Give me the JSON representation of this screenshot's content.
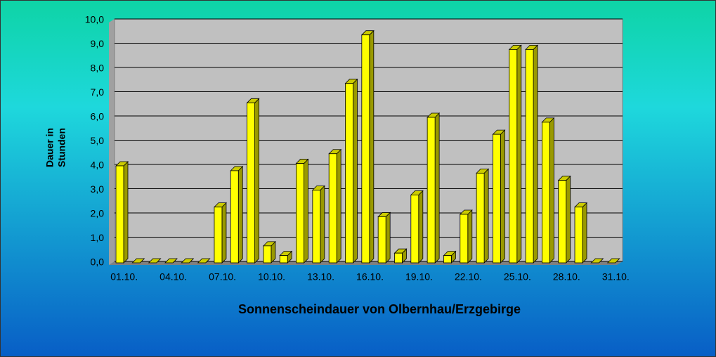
{
  "chart_data": {
    "type": "bar3d",
    "title": "Sonnenscheindauer von Olbernhau/Erzgebirge",
    "y_label": [
      "Dauer in",
      "Stunden"
    ],
    "categories": [
      "01.10.",
      null,
      null,
      "04.10.",
      null,
      null,
      "07.10.",
      null,
      null,
      "10.10.",
      null,
      null,
      "13.10.",
      null,
      null,
      "16.10.",
      null,
      null,
      "19.10.",
      null,
      null,
      "22.10.",
      null,
      null,
      "25.10.",
      null,
      null,
      "28.10.",
      null,
      null,
      "31.10."
    ],
    "values": [
      4.0,
      0,
      0,
      0,
      0,
      0,
      2.3,
      3.8,
      6.6,
      0.7,
      0.3,
      4.1,
      3.0,
      4.5,
      7.4,
      9.4,
      1.9,
      0.4,
      2.8,
      6.0,
      0.3,
      2.0,
      3.7,
      5.3,
      8.8,
      8.8,
      5.8,
      3.4,
      2.3,
      0,
      0
    ],
    "color": "#ffff00",
    "ylim": [
      0,
      10
    ],
    "yticks": [
      {
        "value": 0,
        "label": "0,0"
      },
      {
        "value": 1,
        "label": "1,0"
      },
      {
        "value": 2,
        "label": "2,0"
      },
      {
        "value": 3,
        "label": "3,0"
      },
      {
        "value": 4,
        "label": "4,0"
      },
      {
        "value": 5,
        "label": "5,0"
      },
      {
        "value": 6,
        "label": "6,0"
      },
      {
        "value": 7,
        "label": "7,0"
      },
      {
        "value": 8,
        "label": "8,0"
      },
      {
        "value": 9,
        "label": "9,0"
      },
      {
        "value": 10,
        "label": "10,0"
      }
    ],
    "grid": true
  }
}
